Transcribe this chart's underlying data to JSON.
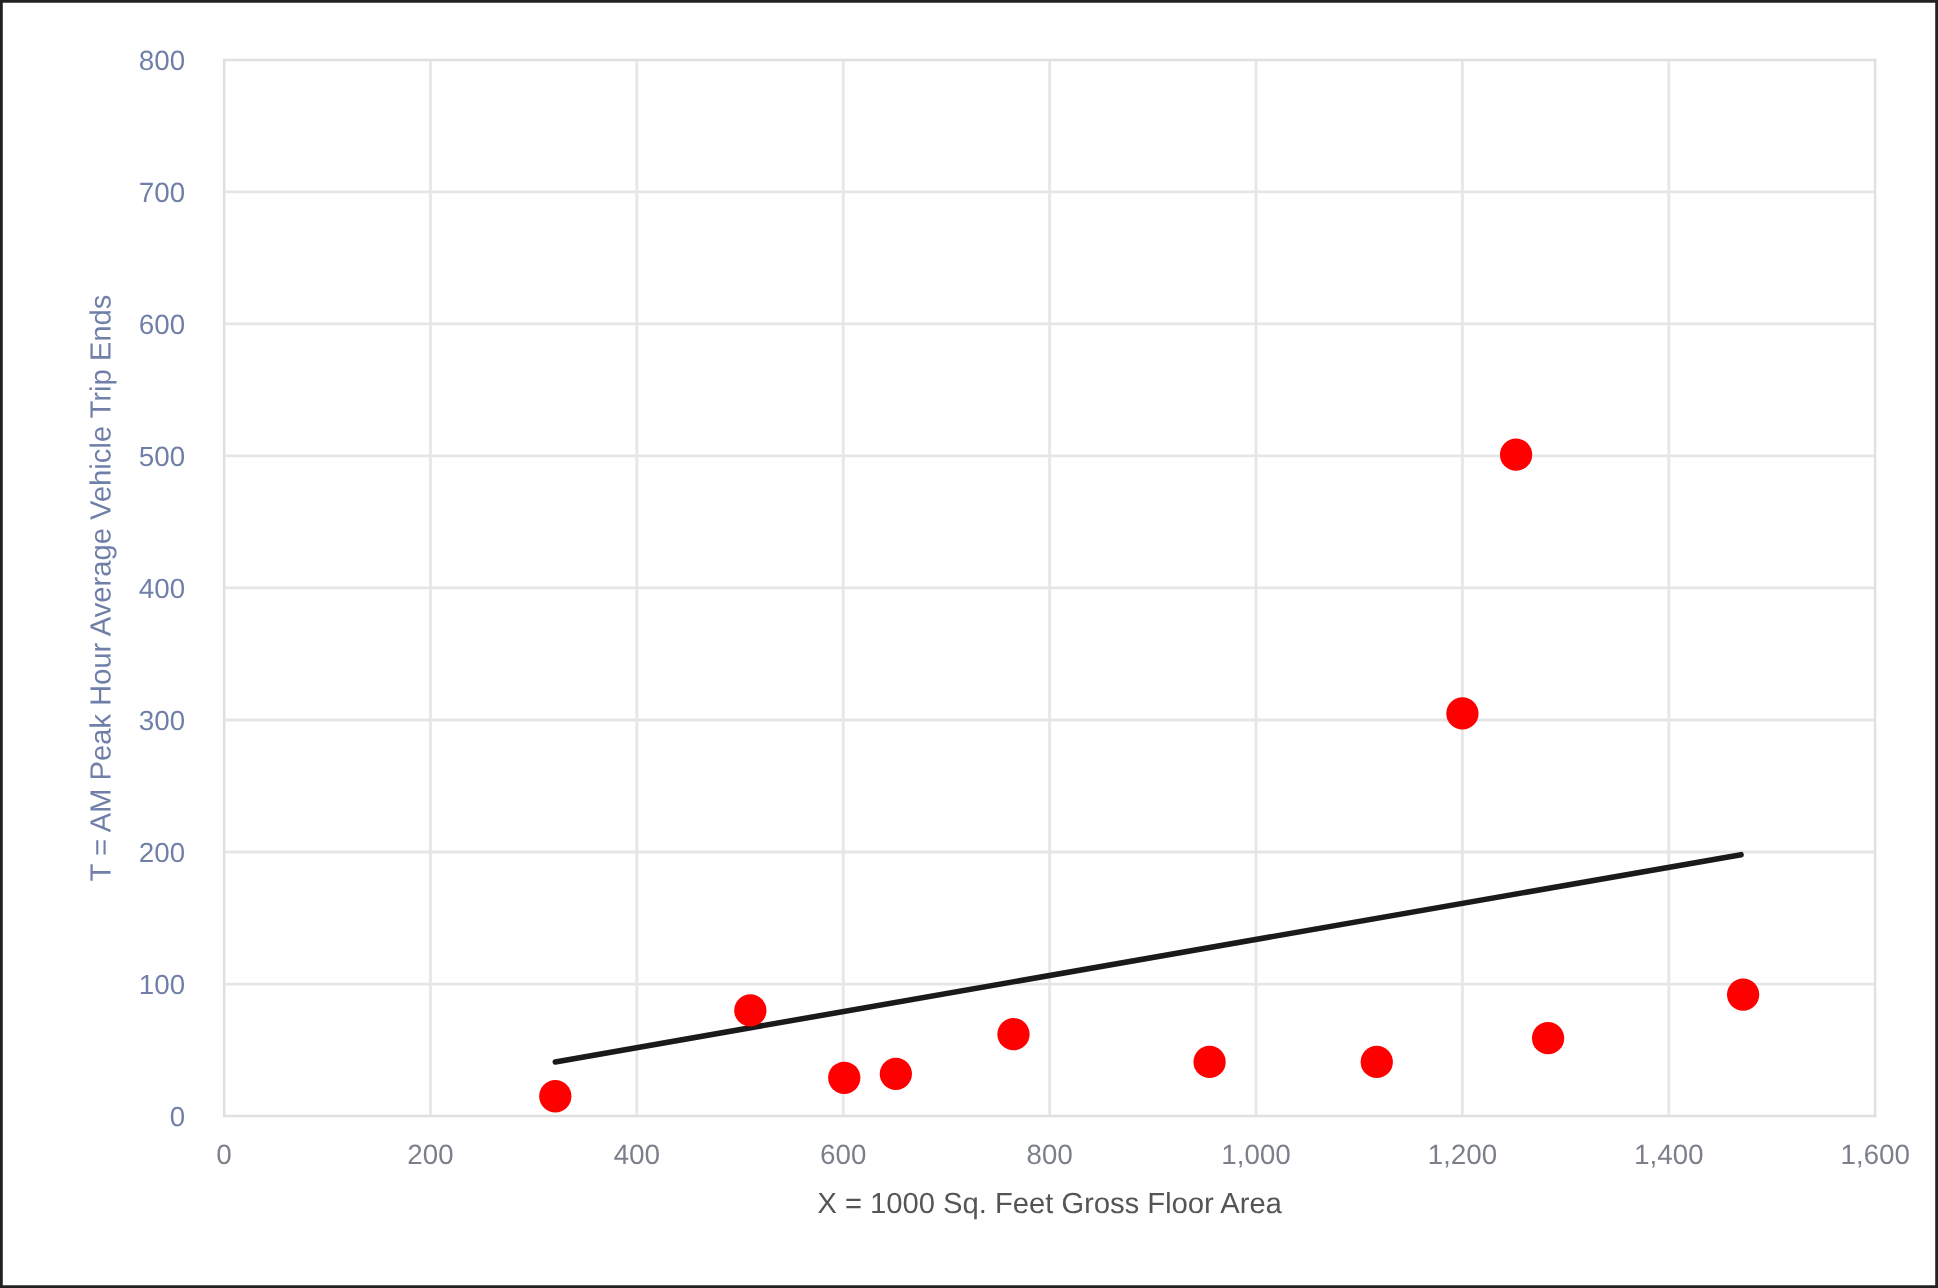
{
  "chart_data": {
    "type": "scatter",
    "xlabel": "X = 1000 Sq. Feet Gross Floor Area",
    "ylabel": "T = AM Peak Hour Average Vehicle Trip Ends",
    "series": [
      {
        "color": "#ff0000",
        "marker": "circle",
        "x": [
          321,
          510,
          601,
          651,
          765,
          955,
          1117,
          1200,
          1252,
          1283,
          1472
        ],
        "values": [
          15,
          80,
          29,
          32,
          62,
          41,
          41,
          305,
          501,
          59,
          92
        ]
      },
      {
        "type": "line",
        "color": "#1a1a1a",
        "marker": "none",
        "line_style": "solid",
        "x": [
          321,
          1470
        ],
        "values": [
          41,
          198
        ]
      }
    ],
    "xlim": [
      0,
      1600
    ],
    "xticks": [
      0,
      200,
      400,
      600,
      800,
      {
        "value": 1000,
        "label": "1,000"
      },
      {
        "value": 1200,
        "label": "1,200"
      },
      {
        "value": 1400,
        "label": "1,400"
      },
      {
        "value": 1600,
        "label": "1,600"
      }
    ],
    "ylim": [
      0,
      800
    ],
    "yticks": [
      0,
      100,
      200,
      300,
      400,
      500,
      600,
      700,
      800
    ],
    "grid": true
  }
}
